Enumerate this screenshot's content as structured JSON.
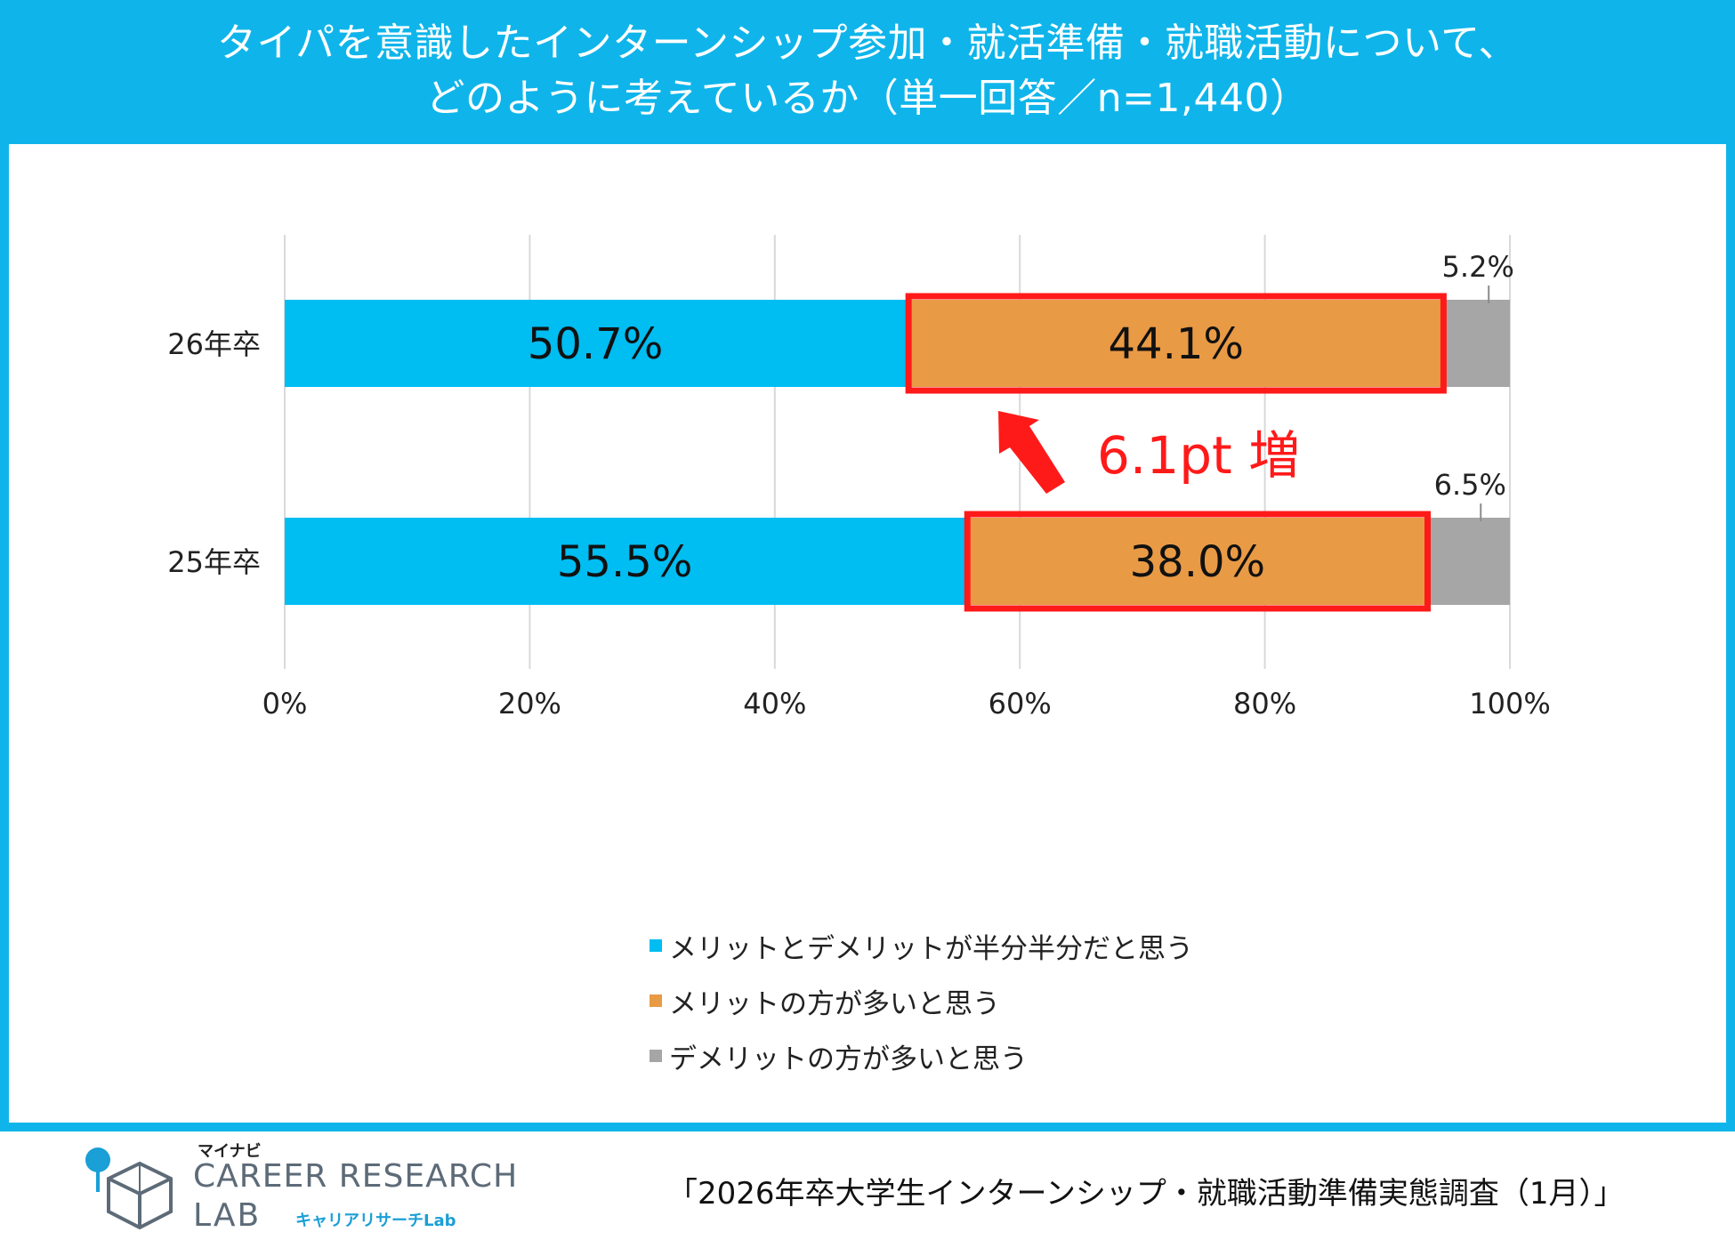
{
  "header": {
    "title_line1": "タイパを意識したインターンシップ参加・就活準備・就職活動について、",
    "title_line2": "どのように考えているか（単一回答／n=1,440）"
  },
  "chart_data": {
    "type": "bar",
    "orientation": "horizontal",
    "stacked": true,
    "categories": [
      "26年卒",
      "25年卒"
    ],
    "series": [
      {
        "name": "メリットとデメリットが半分半分だと思う",
        "values": [
          50.7,
          55.5
        ],
        "color": "#00bdf2"
      },
      {
        "name": "メリットの方が多いと思う",
        "values": [
          44.1,
          38.0
        ],
        "color": "#e99a45"
      },
      {
        "name": "デメリットの方が多いと思う",
        "values": [
          5.2,
          6.5
        ],
        "color": "#a6a6a6"
      }
    ],
    "data_labels": [
      [
        "50.7%",
        "44.1%",
        "5.2%"
      ],
      [
        "55.5%",
        "38.0%",
        "6.5%"
      ]
    ],
    "xlim": [
      0,
      100
    ],
    "x_ticks": [
      0,
      20,
      40,
      60,
      80,
      100
    ],
    "x_tick_labels": [
      "0%",
      "20%",
      "40%",
      "60%",
      "80%",
      "100%"
    ],
    "grid": true,
    "legend_position": "bottom",
    "highlight_series": "メリットの方が多いと思う",
    "highlight_color": "#ff1a1a",
    "annotation": "6.1pt 増"
  },
  "source": "「2026年卒大学生インターンシップ・就職活動準備実態調査（1月）」",
  "logo": {
    "maynavi": "マイナビ",
    "main": "CAREER RESEARCH",
    "lab": "LAB",
    "sub": "キャリアリサーチLab"
  }
}
